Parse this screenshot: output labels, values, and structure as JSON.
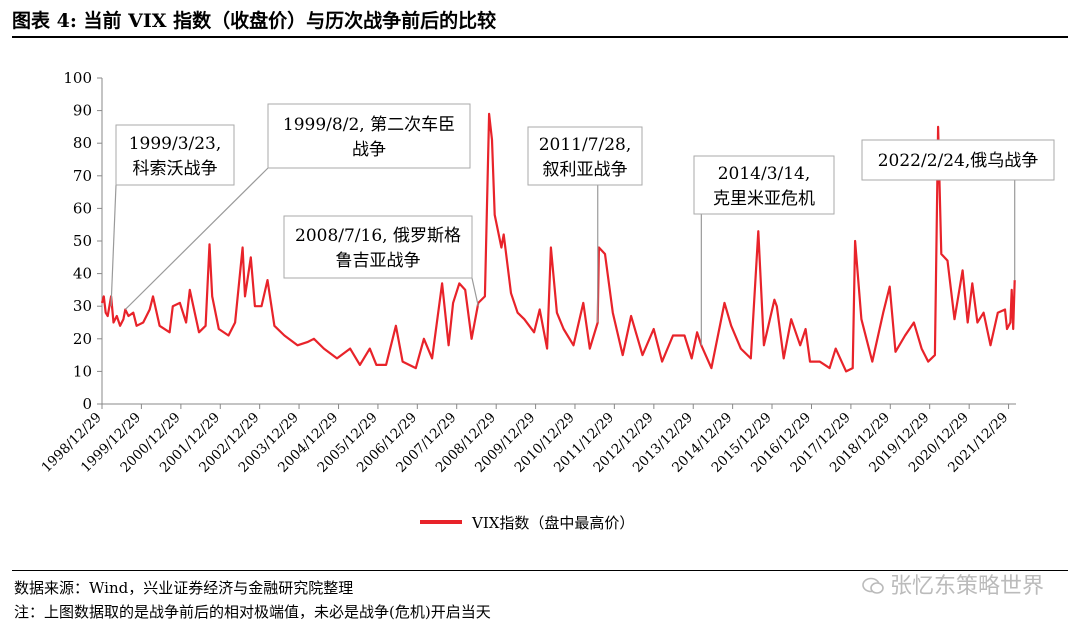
{
  "header": {
    "title": "图表 4:  当前 VIX 指数（收盘价）与历次战争前后的比较"
  },
  "footer": {
    "source": "数据来源：Wind，兴业证券经济与金融研究院整理",
    "note": "注：上图数据取的是战争前后的相对极端值，未必是战争(危机)开启当天",
    "watermark": "张忆东策略世界"
  },
  "chart_data": {
    "type": "line",
    "series": [
      {
        "name": "VIX指数（盘中最高价）",
        "color": "#e8232a",
        "points": [
          [
            "1998-12-29",
            31
          ],
          [
            "1999-01-15",
            33
          ],
          [
            "1999-02-01",
            28
          ],
          [
            "1999-02-20",
            27
          ],
          [
            "1999-03-23",
            33
          ],
          [
            "1999-04-15",
            25
          ],
          [
            "1999-05-15",
            27
          ],
          [
            "1999-06-15",
            24
          ],
          [
            "1999-07-15",
            26
          ],
          [
            "1999-08-02",
            29
          ],
          [
            "1999-09-01",
            27
          ],
          [
            "1999-10-15",
            28
          ],
          [
            "1999-11-15",
            24
          ],
          [
            "2000-01-15",
            25
          ],
          [
            "2000-03-15",
            29
          ],
          [
            "2000-04-15",
            33
          ],
          [
            "2000-06-15",
            24
          ],
          [
            "2000-09-15",
            22
          ],
          [
            "2000-10-15",
            30
          ],
          [
            "2000-12-20",
            31
          ],
          [
            "2001-02-15",
            25
          ],
          [
            "2001-03-22",
            35
          ],
          [
            "2001-06-15",
            22
          ],
          [
            "2001-08-15",
            24
          ],
          [
            "2001-09-20",
            49
          ],
          [
            "2001-10-15",
            33
          ],
          [
            "2001-12-15",
            23
          ],
          [
            "2002-03-15",
            21
          ],
          [
            "2002-05-15",
            25
          ],
          [
            "2002-07-24",
            48
          ],
          [
            "2002-08-15",
            33
          ],
          [
            "2002-10-08",
            45
          ],
          [
            "2002-11-15",
            30
          ],
          [
            "2003-01-15",
            30
          ],
          [
            "2003-03-12",
            38
          ],
          [
            "2003-05-15",
            24
          ],
          [
            "2003-08-15",
            21
          ],
          [
            "2003-12-15",
            18
          ],
          [
            "2004-03-15",
            19
          ],
          [
            "2004-05-15",
            20
          ],
          [
            "2004-08-15",
            17
          ],
          [
            "2004-12-15",
            14
          ],
          [
            "2005-04-15",
            17
          ],
          [
            "2005-07-15",
            12
          ],
          [
            "2005-10-15",
            17
          ],
          [
            "2005-12-15",
            12
          ],
          [
            "2006-03-15",
            12
          ],
          [
            "2006-06-14",
            24
          ],
          [
            "2006-08-15",
            13
          ],
          [
            "2006-12-15",
            11
          ],
          [
            "2007-02-28",
            20
          ],
          [
            "2007-05-15",
            14
          ],
          [
            "2007-08-16",
            37
          ],
          [
            "2007-10-15",
            18
          ],
          [
            "2007-11-26",
            31
          ],
          [
            "2008-01-22",
            37
          ],
          [
            "2008-03-17",
            35
          ],
          [
            "2008-05-15",
            20
          ],
          [
            "2008-07-16",
            31
          ],
          [
            "2008-09-15",
            33
          ],
          [
            "2008-10-24",
            89
          ],
          [
            "2008-11-20",
            81
          ],
          [
            "2008-12-15",
            58
          ],
          [
            "2009-02-15",
            48
          ],
          [
            "2009-03-09",
            52
          ],
          [
            "2009-05-15",
            34
          ],
          [
            "2009-07-15",
            28
          ],
          [
            "2009-09-15",
            26
          ],
          [
            "2009-12-15",
            22
          ],
          [
            "2010-02-05",
            29
          ],
          [
            "2010-04-15",
            17
          ],
          [
            "2010-05-20",
            48
          ],
          [
            "2010-07-15",
            28
          ],
          [
            "2010-09-15",
            23
          ],
          [
            "2010-12-15",
            18
          ],
          [
            "2011-03-16",
            31
          ],
          [
            "2011-05-15",
            17
          ],
          [
            "2011-07-28",
            25
          ],
          [
            "2011-08-08",
            48
          ],
          [
            "2011-10-03",
            46
          ],
          [
            "2011-12-15",
            28
          ],
          [
            "2012-03-15",
            15
          ],
          [
            "2012-06-01",
            27
          ],
          [
            "2012-09-15",
            15
          ],
          [
            "2012-12-28",
            23
          ],
          [
            "2013-03-15",
            13
          ],
          [
            "2013-06-24",
            21
          ],
          [
            "2013-10-09",
            21
          ],
          [
            "2013-12-15",
            14
          ],
          [
            "2014-02-03",
            22
          ],
          [
            "2014-03-14",
            18
          ],
          [
            "2014-06-15",
            11
          ],
          [
            "2014-10-15",
            31
          ],
          [
            "2014-12-16",
            24
          ],
          [
            "2015-03-15",
            17
          ],
          [
            "2015-06-15",
            14
          ],
          [
            "2015-08-24",
            53
          ],
          [
            "2015-10-15",
            18
          ],
          [
            "2016-01-20",
            32
          ],
          [
            "2016-02-11",
            30
          ],
          [
            "2016-04-15",
            14
          ],
          [
            "2016-06-24",
            26
          ],
          [
            "2016-09-15",
            18
          ],
          [
            "2016-11-04",
            23
          ],
          [
            "2016-12-15",
            13
          ],
          [
            "2017-03-15",
            13
          ],
          [
            "2017-06-15",
            11
          ],
          [
            "2017-08-10",
            17
          ],
          [
            "2017-11-15",
            10
          ],
          [
            "2018-01-15",
            11
          ],
          [
            "2018-02-06",
            50
          ],
          [
            "2018-04-05",
            26
          ],
          [
            "2018-07-15",
            13
          ],
          [
            "2018-10-24",
            28
          ],
          [
            "2018-12-24",
            36
          ],
          [
            "2019-02-15",
            16
          ],
          [
            "2019-05-15",
            21
          ],
          [
            "2019-08-05",
            25
          ],
          [
            "2019-10-15",
            17
          ],
          [
            "2019-12-15",
            13
          ],
          [
            "2020-02-15",
            15
          ],
          [
            "2020-03-16",
            85
          ],
          [
            "2020-04-15",
            46
          ],
          [
            "2020-06-11",
            44
          ],
          [
            "2020-08-15",
            26
          ],
          [
            "2020-10-29",
            41
          ],
          [
            "2020-12-15",
            25
          ],
          [
            "2021-01-27",
            37
          ],
          [
            "2021-03-15",
            25
          ],
          [
            "2021-05-12",
            28
          ],
          [
            "2021-07-15",
            18
          ],
          [
            "2021-09-20",
            28
          ],
          [
            "2021-11-26",
            29
          ],
          [
            "2021-12-15",
            23
          ],
          [
            "2022-01-15",
            25
          ],
          [
            "2022-01-27",
            35
          ],
          [
            "2022-02-10",
            23
          ],
          [
            "2022-02-24",
            38
          ]
        ]
      }
    ],
    "x_range": [
      "1998-12-29",
      "2022-03-08"
    ],
    "xtick_labels": [
      "1998/12/29",
      "1999/12/29",
      "2000/12/29",
      "2001/12/29",
      "2002/12/29",
      "2003/12/29",
      "2004/12/29",
      "2005/12/29",
      "2006/12/29",
      "2007/12/29",
      "2008/12/29",
      "2009/12/29",
      "2010/12/29",
      "2011/12/29",
      "2012/12/29",
      "2013/12/29",
      "2014/12/29",
      "2015/12/29",
      "2016/12/29",
      "2017/12/29",
      "2018/12/29",
      "2019/12/29",
      "2020/12/29",
      "2021/12/29"
    ],
    "ylim": [
      0,
      100
    ],
    "yticks": [
      0,
      10,
      20,
      30,
      40,
      50,
      60,
      70,
      80,
      90,
      100
    ],
    "grid": false,
    "legend_position": "bottom",
    "annotations": [
      {
        "line1": "1999/3/23,",
        "line2": "科索沃战争",
        "target": [
          "1999-03-23",
          30
        ]
      },
      {
        "line1": "1999/8/2, 第二次车臣",
        "line2": "战争",
        "target": [
          "1999-08-02",
          29
        ]
      },
      {
        "line1": "2008/7/16, 俄罗斯格",
        "line2": "鲁吉亚战争",
        "target": [
          "2008-07-16",
          30
        ]
      },
      {
        "line1": "2011/7/28,",
        "line2": "叙利亚战争",
        "target": [
          "2011-07-28",
          25
        ]
      },
      {
        "line1": "2014/3/14,",
        "line2": "克里米亚危机",
        "target": [
          "2014-03-14",
          18
        ]
      },
      {
        "line1": "2022/2/24,俄乌战争",
        "line2": "",
        "target": [
          "2022-02-24",
          38
        ]
      }
    ]
  }
}
